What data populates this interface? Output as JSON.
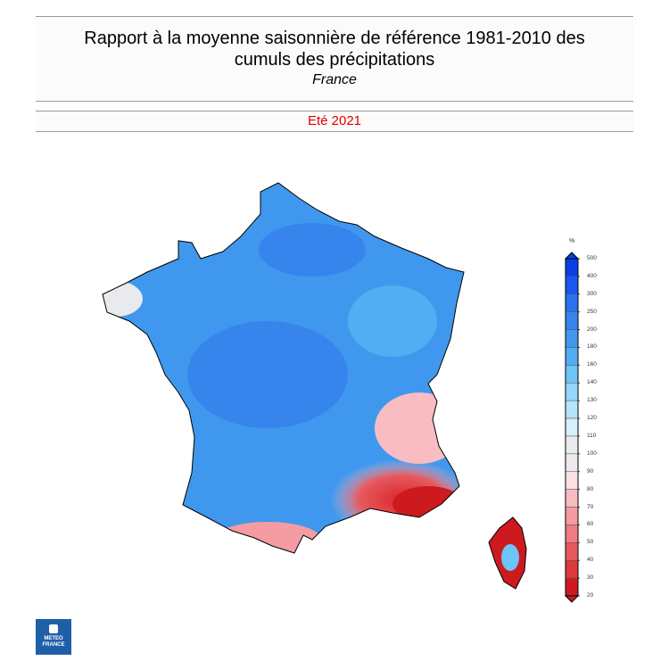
{
  "header": {
    "title": "Rapport à la moyenne saisonnière de référence 1981-2010 des cumuls des précipitations",
    "region": "France",
    "season": "Eté 2021"
  },
  "legend": {
    "unit": "%",
    "ticks": [
      "500",
      "400",
      "300",
      "250",
      "200",
      "180",
      "160",
      "140",
      "130",
      "120",
      "110",
      "100",
      "90",
      "80",
      "70",
      "60",
      "50",
      "40",
      "30",
      "20"
    ],
    "colors": [
      "#0a3fe6",
      "#1957f0",
      "#2a72f2",
      "#3585ec",
      "#3f98ee",
      "#52adf2",
      "#6cc4f7",
      "#95d6fa",
      "#b5e4fb",
      "#d8f0fb",
      "#e8eaee",
      "#eee8ec",
      "#fbe0e4",
      "#f8bcc2",
      "#f59ba2",
      "#f07c82",
      "#e65a5f",
      "#dd3a3e",
      "#cc1a1f"
    ]
  },
  "logo": {
    "text": "METEO FRANCE"
  },
  "colors": {
    "wet": "#4a90e2",
    "dry": "#d9262b",
    "title": "#e00000"
  }
}
